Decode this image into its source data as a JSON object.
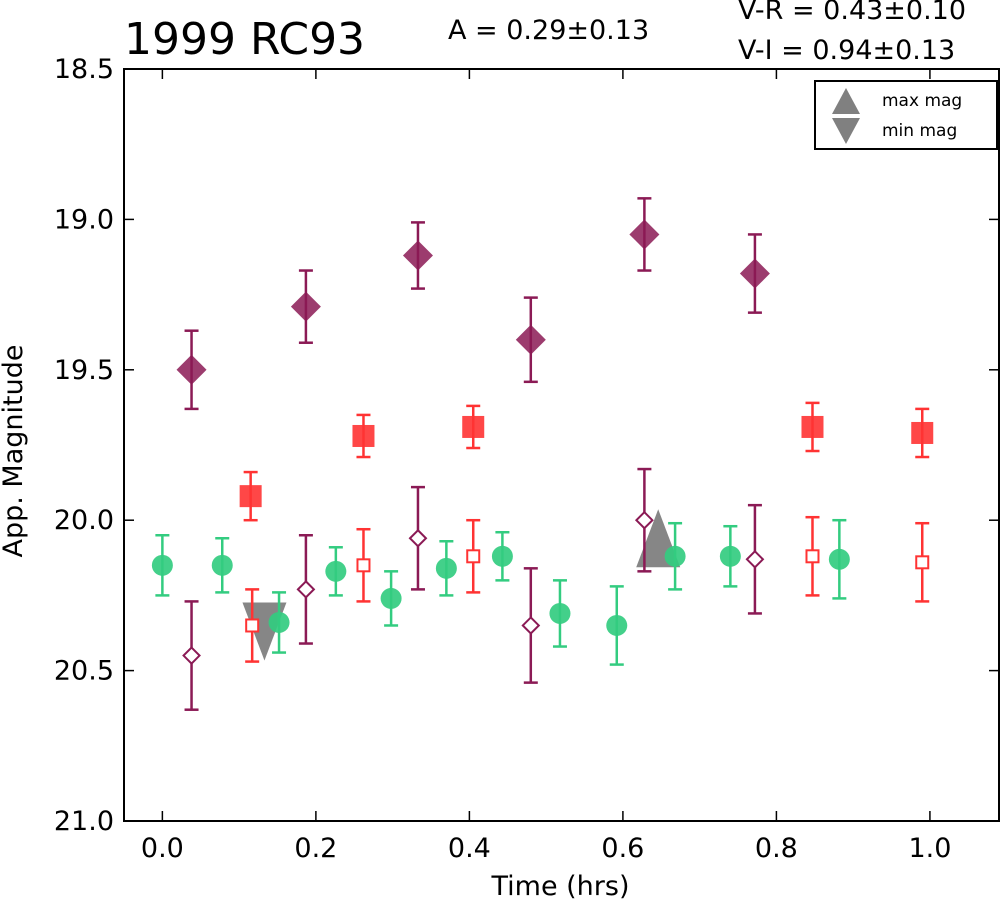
{
  "header": {
    "title": "1999 RC93",
    "amplitude": "A  = 0.29±0.13",
    "vr": "V-R = 0.43±0.10",
    "vi": "V-I  = 0.94±0.13"
  },
  "legend": {
    "max_label": "max mag",
    "min_label": "min mag",
    "placement": "top-right"
  },
  "chart_data": {
    "type": "scatter",
    "title": "1999 RC93",
    "xlabel": "Time (hrs)",
    "ylabel": "App. Magnitude",
    "xlim": [
      -0.05,
      1.09
    ],
    "ylim": [
      21.0,
      18.5
    ],
    "y_inverted": true,
    "xticks": [
      "0.0",
      "0.2",
      "0.4",
      "0.6",
      "0.8",
      "1.0"
    ],
    "xtick_values": [
      0.0,
      0.2,
      0.4,
      0.6,
      0.8,
      1.0
    ],
    "yticks": [
      "18.5",
      "19.0",
      "19.5",
      "20.0",
      "20.5",
      "21.0"
    ],
    "ytick_values": [
      18.5,
      19.0,
      19.5,
      20.0,
      20.5,
      21.0
    ],
    "grid": false,
    "series": [
      {
        "marker": "circle",
        "filled": true,
        "color": "#33cc80",
        "points": [
          {
            "x": 0.0,
            "y": 20.15,
            "err": 0.1
          },
          {
            "x": 0.078,
            "y": 20.15,
            "err": 0.09
          },
          {
            "x": 0.152,
            "y": 20.34,
            "err": 0.1
          },
          {
            "x": 0.226,
            "y": 20.17,
            "err": 0.08
          },
          {
            "x": 0.298,
            "y": 20.26,
            "err": 0.09
          },
          {
            "x": 0.37,
            "y": 20.16,
            "err": 0.09
          },
          {
            "x": 0.443,
            "y": 20.12,
            "err": 0.08
          },
          {
            "x": 0.518,
            "y": 20.31,
            "err": 0.11
          },
          {
            "x": 0.592,
            "y": 20.35,
            "err": 0.13
          },
          {
            "x": 0.668,
            "y": 20.12,
            "err": 0.11
          },
          {
            "x": 0.74,
            "y": 20.12,
            "err": 0.1
          },
          {
            "x": 0.882,
            "y": 20.13,
            "err": 0.13
          }
        ]
      },
      {
        "marker": "square",
        "filled": true,
        "color": "#ff3333",
        "points": [
          {
            "x": 0.115,
            "y": 19.92,
            "err": 0.08
          },
          {
            "x": 0.262,
            "y": 19.72,
            "err": 0.07
          },
          {
            "x": 0.405,
            "y": 19.69,
            "err": 0.07
          },
          {
            "x": 0.847,
            "y": 19.69,
            "err": 0.08
          },
          {
            "x": 0.99,
            "y": 19.71,
            "err": 0.08
          }
        ]
      },
      {
        "marker": "square",
        "filled": false,
        "color": "#ff3333",
        "points": [
          {
            "x": 0.117,
            "y": 20.35,
            "err": 0.12
          },
          {
            "x": 0.262,
            "y": 20.15,
            "err": 0.12
          },
          {
            "x": 0.405,
            "y": 20.12,
            "err": 0.12
          },
          {
            "x": 0.847,
            "y": 20.12,
            "err": 0.13
          },
          {
            "x": 0.99,
            "y": 20.14,
            "err": 0.13
          }
        ]
      },
      {
        "marker": "diamond",
        "filled": true,
        "color": "#8b1a55",
        "points": [
          {
            "x": 0.038,
            "y": 19.5,
            "err": 0.13
          },
          {
            "x": 0.187,
            "y": 19.29,
            "err": 0.12
          },
          {
            "x": 0.333,
            "y": 19.12,
            "err": 0.11
          },
          {
            "x": 0.48,
            "y": 19.4,
            "err": 0.14
          },
          {
            "x": 0.628,
            "y": 19.05,
            "err": 0.12
          },
          {
            "x": 0.772,
            "y": 19.18,
            "err": 0.13
          }
        ]
      },
      {
        "marker": "diamond",
        "filled": false,
        "color": "#8b1a55",
        "points": [
          {
            "x": 0.038,
            "y": 20.45,
            "err": 0.18
          },
          {
            "x": 0.187,
            "y": 20.23,
            "err": 0.18
          },
          {
            "x": 0.333,
            "y": 20.06,
            "err": 0.17
          },
          {
            "x": 0.48,
            "y": 20.35,
            "err": 0.19
          },
          {
            "x": 0.628,
            "y": 20.0,
            "err": 0.17
          },
          {
            "x": 0.772,
            "y": 20.13,
            "err": 0.18
          }
        ]
      }
    ],
    "extrema": [
      {
        "type": "max mag",
        "x": 0.646,
        "y": 20.09,
        "color": "#808080"
      },
      {
        "type": "min mag",
        "x": 0.133,
        "y": 20.34,
        "color": "#808080"
      }
    ]
  }
}
